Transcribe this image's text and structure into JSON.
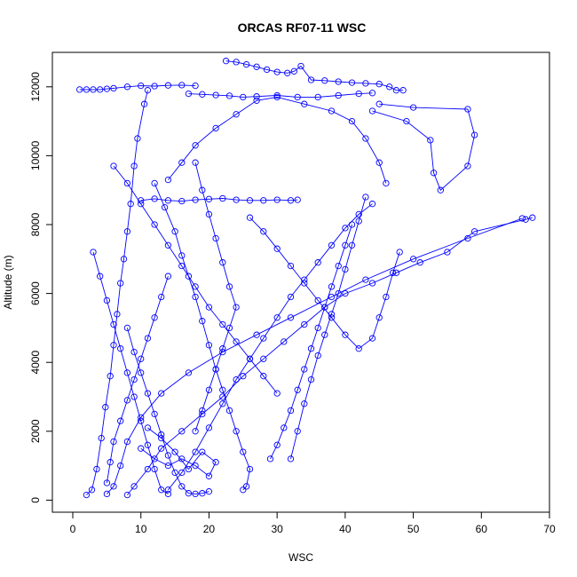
{
  "chart_data": {
    "type": "line",
    "title": "ORCAS RF07-11 WSC",
    "xlabel": "WSC",
    "ylabel": "Altitude (m)",
    "xlim": [
      -3,
      70
    ],
    "ylim": [
      -350,
      13000
    ],
    "xticks": [
      0,
      10,
      20,
      30,
      40,
      50,
      60,
      70
    ],
    "yticks": [
      0,
      2000,
      4000,
      6000,
      8000,
      10000,
      12000
    ],
    "grid": false,
    "legend": "none",
    "marker": "open-circle",
    "color": "#0000ff",
    "series": [
      {
        "values": [
          [
            2.0,
            150
          ],
          [
            2.8,
            300
          ],
          [
            3.5,
            900
          ],
          [
            4.2,
            1800
          ],
          [
            4.8,
            2700
          ],
          [
            5.5,
            3600
          ],
          [
            6.0,
            4500
          ],
          [
            6.5,
            5400
          ],
          [
            7.0,
            6300
          ],
          [
            7.5,
            7000
          ],
          [
            8.0,
            7800
          ],
          [
            8.5,
            8600
          ],
          [
            9.0,
            9700
          ],
          [
            9.5,
            10500
          ],
          [
            10.5,
            11500
          ],
          [
            11.0,
            11900
          ]
        ]
      },
      {
        "values": [
          [
            1.0,
            11920
          ],
          [
            2.0,
            11920
          ],
          [
            3.0,
            11920
          ],
          [
            4.0,
            11920
          ],
          [
            5.0,
            11940
          ],
          [
            6.0,
            11960
          ],
          [
            8.0,
            12000
          ],
          [
            10.0,
            12030
          ],
          [
            12.0,
            12020
          ],
          [
            14.0,
            12040
          ],
          [
            16.0,
            12050
          ],
          [
            18.0,
            12030
          ]
        ]
      },
      {
        "values": [
          [
            22.5,
            12750
          ],
          [
            24.0,
            12720
          ],
          [
            25.5,
            12650
          ],
          [
            27.0,
            12580
          ],
          [
            28.5,
            12500
          ],
          [
            30.0,
            12430
          ],
          [
            31.5,
            12400
          ],
          [
            32.5,
            12450
          ],
          [
            33.5,
            12600
          ],
          [
            35.0,
            12200
          ],
          [
            37.0,
            12180
          ],
          [
            39.0,
            12150
          ],
          [
            41.0,
            12120
          ],
          [
            43.0,
            12100
          ],
          [
            45.0,
            12080
          ],
          [
            46.5,
            12000
          ],
          [
            47.5,
            11900
          ],
          [
            48.5,
            11900
          ]
        ]
      },
      {
        "values": [
          [
            17.0,
            11800
          ],
          [
            19.0,
            11780
          ],
          [
            21.0,
            11760
          ],
          [
            23.0,
            11740
          ],
          [
            25.0,
            11700
          ],
          [
            27.0,
            11720
          ],
          [
            30.0,
            11750
          ],
          [
            33.0,
            11700
          ],
          [
            36.0,
            11700
          ],
          [
            39.0,
            11750
          ],
          [
            42.0,
            11800
          ],
          [
            44.0,
            11820
          ]
        ]
      },
      {
        "values": [
          [
            45.0,
            11500
          ],
          [
            50.0,
            11400
          ],
          [
            58.0,
            11350
          ],
          [
            59.0,
            10600
          ],
          [
            58.0,
            9700
          ],
          [
            54.0,
            9000
          ],
          [
            53.0,
            9500
          ],
          [
            52.5,
            10450
          ],
          [
            49.0,
            11000
          ],
          [
            44.0,
            11300
          ]
        ]
      },
      {
        "values": [
          [
            67.5,
            8200
          ],
          [
            66.5,
            8150
          ],
          [
            59.0,
            7800
          ],
          [
            55.0,
            7200
          ],
          [
            51.0,
            6900
          ],
          [
            47.5,
            6600
          ],
          [
            44.0,
            6300
          ],
          [
            40.0,
            6000
          ],
          [
            37.0,
            5600
          ],
          [
            34.0,
            5100
          ],
          [
            31.0,
            4600
          ],
          [
            28.0,
            4100
          ],
          [
            25.0,
            3600
          ],
          [
            22.0,
            3000
          ],
          [
            19.0,
            2500
          ],
          [
            16.0,
            2000
          ],
          [
            13.0,
            1500
          ],
          [
            11.0,
            900
          ],
          [
            9.0,
            400
          ],
          [
            8.0,
            150
          ]
        ]
      },
      {
        "values": [
          [
            66.0,
            8180
          ],
          [
            58.0,
            7600
          ],
          [
            50.0,
            7000
          ],
          [
            43.0,
            6400
          ],
          [
            38.0,
            5900
          ],
          [
            32.0,
            5300
          ],
          [
            27.0,
            4800
          ],
          [
            22.0,
            4300
          ],
          [
            17.0,
            3700
          ],
          [
            13.0,
            3100
          ],
          [
            10.0,
            2400
          ],
          [
            8.0,
            1700
          ],
          [
            7.0,
            1000
          ],
          [
            6.0,
            400
          ],
          [
            5.0,
            180
          ]
        ]
      },
      {
        "values": [
          [
            10.0,
            8700
          ],
          [
            12.0,
            8750
          ],
          [
            14.0,
            8700
          ],
          [
            16.0,
            8680
          ],
          [
            18.0,
            8720
          ],
          [
            20.0,
            8740
          ],
          [
            22.0,
            8760
          ],
          [
            24.0,
            8720
          ],
          [
            26.0,
            8700
          ],
          [
            28.0,
            8700
          ],
          [
            30.0,
            8720
          ],
          [
            32.0,
            8700
          ],
          [
            33.0,
            8720
          ]
        ]
      },
      {
        "values": [
          [
            44.0,
            8600
          ],
          [
            42.0,
            8300
          ],
          [
            40.0,
            7900
          ],
          [
            38.0,
            7400
          ],
          [
            36.0,
            6900
          ],
          [
            34.0,
            6400
          ],
          [
            32.0,
            5900
          ],
          [
            30.0,
            5300
          ],
          [
            28.0,
            4700
          ],
          [
            26.0,
            4100
          ],
          [
            24.0,
            3500
          ],
          [
            22.0,
            2800
          ],
          [
            20.0,
            2100
          ],
          [
            18.0,
            1400
          ],
          [
            16.0,
            800
          ],
          [
            14.0,
            300
          ]
        ]
      },
      {
        "values": [
          [
            46.0,
            9200
          ],
          [
            45.0,
            9800
          ],
          [
            43.0,
            10500
          ],
          [
            41.0,
            11000
          ],
          [
            38.0,
            11300
          ],
          [
            34.0,
            11500
          ],
          [
            30.0,
            11700
          ],
          [
            27.0,
            11600
          ],
          [
            24.0,
            11200
          ],
          [
            21.0,
            10800
          ],
          [
            18.0,
            10300
          ],
          [
            16.0,
            9800
          ],
          [
            14.0,
            9300
          ]
        ]
      },
      {
        "values": [
          [
            3.0,
            7200
          ],
          [
            4.0,
            6500
          ],
          [
            5.0,
            5800
          ],
          [
            6.0,
            5100
          ],
          [
            7.0,
            4400
          ],
          [
            8.0,
            3700
          ],
          [
            9.0,
            3000
          ],
          [
            10.0,
            2300
          ],
          [
            11.0,
            1600
          ],
          [
            12.0,
            900
          ],
          [
            13.0,
            300
          ],
          [
            14.0,
            180
          ]
        ]
      },
      {
        "values": [
          [
            12.0,
            9200
          ],
          [
            13.5,
            8500
          ],
          [
            15.0,
            7800
          ],
          [
            16.0,
            7100
          ],
          [
            17.0,
            6500
          ],
          [
            18.0,
            5900
          ],
          [
            19.0,
            5200
          ],
          [
            20.0,
            4500
          ],
          [
            21.0,
            3800
          ],
          [
            22.0,
            3200
          ],
          [
            23.0,
            2600
          ],
          [
            24.0,
            2000
          ],
          [
            25.0,
            1400
          ],
          [
            26.0,
            900
          ],
          [
            25.5,
            400
          ],
          [
            25.0,
            300
          ]
        ]
      },
      {
        "values": [
          [
            29.0,
            1200
          ],
          [
            30.0,
            1600
          ],
          [
            31.0,
            2100
          ],
          [
            32.0,
            2600
          ],
          [
            33.0,
            3200
          ],
          [
            34.0,
            3800
          ],
          [
            35.0,
            4400
          ],
          [
            36.0,
            5000
          ],
          [
            37.0,
            5600
          ],
          [
            38.0,
            6200
          ],
          [
            39.0,
            6800
          ],
          [
            40.0,
            7400
          ],
          [
            41.0,
            8000
          ]
        ]
      },
      {
        "values": [
          [
            48.0,
            7200
          ],
          [
            47.0,
            6600
          ],
          [
            46.0,
            5900
          ],
          [
            45.0,
            5300
          ],
          [
            44.0,
            4700
          ],
          [
            42.0,
            4400
          ],
          [
            40.0,
            4800
          ],
          [
            38.0,
            5300
          ],
          [
            36.0,
            5800
          ],
          [
            34.0,
            6300
          ],
          [
            32.0,
            6800
          ],
          [
            30.0,
            7300
          ],
          [
            28.0,
            7800
          ],
          [
            26.0,
            8200
          ]
        ]
      },
      {
        "values": [
          [
            8.0,
            5000
          ],
          [
            9.0,
            4300
          ],
          [
            10.0,
            3700
          ],
          [
            11.0,
            3100
          ],
          [
            12.0,
            2500
          ],
          [
            13.0,
            1900
          ],
          [
            14.0,
            1300
          ],
          [
            15.0,
            800
          ],
          [
            16.0,
            400
          ],
          [
            17.0,
            200
          ],
          [
            18.0,
            180
          ],
          [
            19.0,
            200
          ],
          [
            20.0,
            250
          ]
        ]
      },
      {
        "values": [
          [
            14.0,
            6500
          ],
          [
            13.0,
            5900
          ],
          [
            12.0,
            5300
          ],
          [
            11.0,
            4700
          ],
          [
            10.0,
            4100
          ],
          [
            9.0,
            3500
          ],
          [
            8.0,
            2900
          ],
          [
            7.0,
            2300
          ],
          [
            6.0,
            1700
          ],
          [
            5.5,
            1100
          ],
          [
            5.0,
            500
          ]
        ]
      },
      {
        "values": [
          [
            18.0,
            9800
          ],
          [
            19.0,
            9000
          ],
          [
            20.0,
            8300
          ],
          [
            21.0,
            7600
          ],
          [
            22.0,
            6900
          ],
          [
            23.0,
            6200
          ],
          [
            24.0,
            5600
          ],
          [
            23.0,
            5000
          ],
          [
            22.0,
            4400
          ],
          [
            21.0,
            3800
          ],
          [
            20.0,
            3200
          ],
          [
            19.0,
            2600
          ],
          [
            18.0,
            2000
          ]
        ]
      },
      {
        "values": [
          [
            10.0,
            1500
          ],
          [
            12.0,
            1200
          ],
          [
            14.0,
            1000
          ],
          [
            16.0,
            1200
          ],
          [
            18.0,
            1000
          ],
          [
            20.0,
            700
          ],
          [
            21.0,
            1100
          ],
          [
            19.0,
            1400
          ],
          [
            17.0,
            900
          ],
          [
            15.0,
            1400
          ],
          [
            13.0,
            1800
          ],
          [
            11.0,
            2100
          ]
        ]
      },
      {
        "values": [
          [
            32.0,
            1200
          ],
          [
            33.0,
            2000
          ],
          [
            34.0,
            2800
          ],
          [
            35.0,
            3500
          ],
          [
            36.0,
            4200
          ],
          [
            37.0,
            4800
          ],
          [
            38.0,
            5400
          ],
          [
            39.0,
            6000
          ],
          [
            40.0,
            6700
          ],
          [
            41.0,
            7400
          ],
          [
            42.0,
            8100
          ],
          [
            43.0,
            8800
          ]
        ]
      },
      {
        "values": [
          [
            6.0,
            9700
          ],
          [
            8.0,
            9200
          ],
          [
            10.0,
            8600
          ],
          [
            12.0,
            8000
          ],
          [
            14.0,
            7400
          ],
          [
            16.0,
            6800
          ],
          [
            18.0,
            6200
          ],
          [
            20.0,
            5600
          ],
          [
            22.0,
            5100
          ],
          [
            24.0,
            4600
          ],
          [
            26.0,
            4100
          ],
          [
            28.0,
            3600
          ],
          [
            30.0,
            3100
          ]
        ]
      }
    ]
  }
}
